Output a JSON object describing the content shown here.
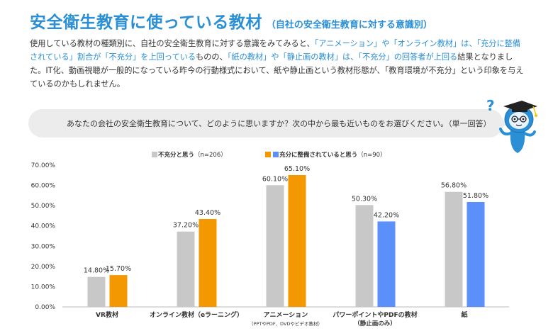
{
  "header": {
    "title": "安全衛生教育に使っている教材",
    "subtitle": "（自社の安全衛生教育に対する意識別）"
  },
  "intro": {
    "p1a": "使用している教材の種類別に、自社の安全衛生教育に対する意識をみてみると、",
    "p1b": "「アニメーション」や「オンライン教材」は、「充分に整備されている」割合が「不充分」を上回っている",
    "p1c": "ものの、",
    "p1d": "「紙の教材」や「静止画の教材」は、「不充分」の回答者が上回る",
    "p1e": "結果となりました。IT化、動画視聴が一般的になっている昨今の行動様式において、紙や静止画という教材形態が、「教育環境が不充分」という印象を与えているのかもしれません。"
  },
  "question": {
    "text": "あなたの会社の安全衛生教育について、どのように思いますか？次の中から最も近いものをお選びください。（単一回答）"
  },
  "mascot": {
    "icon": "question-mascot-icon",
    "mark": "?"
  },
  "chart_data": {
    "type": "bar",
    "categories": [
      {
        "label": "VR教材",
        "sub": ""
      },
      {
        "label": "オンライン教材（eラーニング）",
        "sub": ""
      },
      {
        "label": "アニメーション",
        "sub": "（PPTやPDF、DVDやビデオ教材）"
      },
      {
        "label": "パワーポイントやPDFの教材",
        "sub": "（静止画のみ）"
      },
      {
        "label": "紙",
        "sub": ""
      }
    ],
    "series": [
      {
        "name": "不充分と思う",
        "n": "（n=206）",
        "color": "#c8c8c8",
        "values": [
          14.8,
          37.2,
          60.1,
          50.3,
          56.8
        ]
      },
      {
        "name": "充分に整備されていると思う",
        "n": "（n=90）",
        "colors": [
          "#f39800",
          "#f39800",
          "#f39800",
          "#5b8ff9",
          "#5b8ff9"
        ],
        "values": [
          15.7,
          43.4,
          65.1,
          42.2,
          51.8
        ]
      }
    ],
    "legend_colors": {
      "orange": "#f39800",
      "blue": "#5b8ff9"
    },
    "ylim": [
      0,
      70
    ],
    "yticks": [
      "0.00%",
      "10.00%",
      "20.00%",
      "30.00%",
      "40.00%",
      "50.00%",
      "60.00%",
      "70.00%"
    ],
    "value_labels": [
      [
        "14.80%",
        "37.20%",
        "60.10%",
        "50.30%",
        "56.80%"
      ],
      [
        "15.70%",
        "43.40%",
        "65.10%",
        "42.20%",
        "51.80%"
      ]
    ],
    "xlabel": "",
    "ylabel": "",
    "grid": false,
    "legend": "top"
  }
}
